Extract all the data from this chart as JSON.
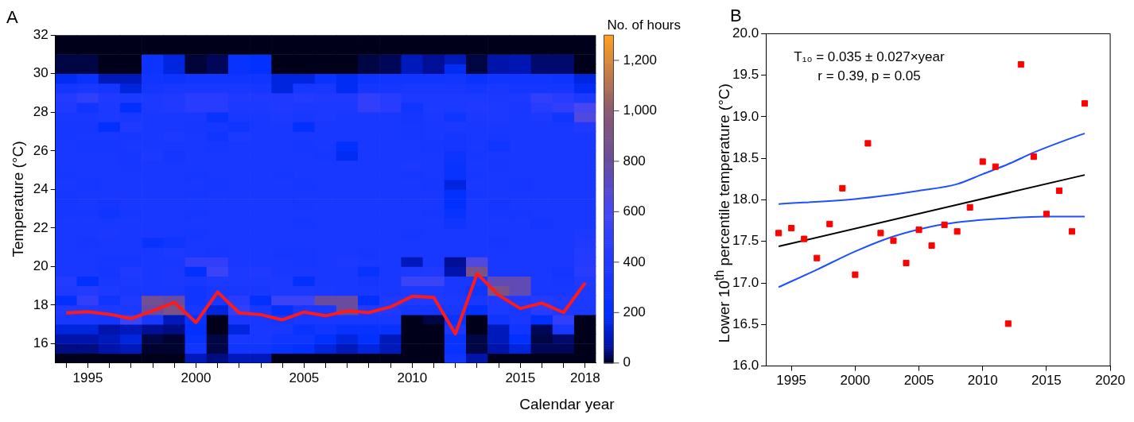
{
  "chart_data": [
    {
      "type": "heatmap",
      "title": "A",
      "ylabel": "Temperature (°C)",
      "xlabel": "Calendar year",
      "clabel": "No. of hours",
      "categories": [
        null,
        "1995",
        null,
        null,
        null,
        null,
        "2000",
        null,
        null,
        null,
        null,
        "2005",
        null,
        null,
        null,
        null,
        "2010",
        null,
        null,
        null,
        null,
        "2015",
        null,
        null,
        "2018"
      ],
      "ylim": [
        15,
        32
      ],
      "yticks": [
        16,
        18,
        20,
        22,
        24,
        26,
        28,
        30,
        32
      ],
      "clim": [
        0,
        1300
      ],
      "cticks": [
        0,
        200,
        400,
        600,
        800,
        {
          "value": 1000,
          "label": "1,000"
        },
        {
          "value": 1200,
          "label": "1,200"
        }
      ],
      "cells": [
        [
          0,
          0,
          0,
          0,
          0,
          0,
          0,
          0,
          0,
          0,
          0,
          0,
          0,
          0,
          0,
          0,
          0,
          0,
          0,
          0,
          0,
          0,
          0,
          0,
          0
        ],
        [
          0,
          0,
          0,
          0,
          0,
          0,
          0,
          0,
          0,
          0,
          0,
          0,
          0,
          0,
          0,
          0,
          0,
          0,
          0,
          0,
          0,
          0,
          0,
          0,
          0
        ],
        [
          20,
          20,
          0,
          0,
          280,
          150,
          15,
          30,
          250,
          200,
          0,
          0,
          0,
          0,
          20,
          30,
          100,
          60,
          100,
          20,
          80,
          90,
          40,
          40,
          0
        ],
        [
          20,
          20,
          0,
          0,
          280,
          150,
          15,
          30,
          250,
          200,
          0,
          0,
          0,
          0,
          20,
          30,
          100,
          60,
          180,
          20,
          80,
          90,
          40,
          40,
          0
        ],
        [
          180,
          250,
          100,
          100,
          300,
          280,
          300,
          300,
          300,
          300,
          150,
          150,
          250,
          180,
          280,
          300,
          300,
          300,
          320,
          250,
          300,
          300,
          300,
          280,
          150
        ],
        [
          330,
          350,
          330,
          150,
          330,
          350,
          350,
          350,
          350,
          340,
          150,
          340,
          350,
          180,
          330,
          330,
          350,
          350,
          350,
          330,
          350,
          330,
          330,
          330,
          180
        ],
        [
          420,
          500,
          400,
          380,
          380,
          400,
          450,
          450,
          400,
          400,
          400,
          420,
          400,
          400,
          500,
          450,
          380,
          380,
          380,
          380,
          370,
          380,
          500,
          450,
          380
        ],
        [
          400,
          300,
          380,
          200,
          380,
          400,
          450,
          450,
          380,
          380,
          400,
          380,
          380,
          380,
          500,
          450,
          300,
          380,
          380,
          400,
          380,
          350,
          450,
          500,
          600
        ],
        [
          350,
          350,
          380,
          350,
          360,
          360,
          350,
          250,
          350,
          350,
          380,
          350,
          380,
          350,
          360,
          360,
          330,
          370,
          300,
          370,
          380,
          360,
          380,
          300,
          650
        ],
        [
          340,
          340,
          200,
          400,
          350,
          360,
          340,
          340,
          300,
          350,
          360,
          200,
          350,
          350,
          350,
          350,
          340,
          350,
          370,
          350,
          360,
          350,
          350,
          350,
          400
        ],
        [
          340,
          350,
          350,
          340,
          350,
          380,
          350,
          300,
          380,
          350,
          350,
          350,
          360,
          350,
          350,
          350,
          340,
          350,
          330,
          360,
          340,
          350,
          350,
          350,
          360
        ],
        [
          350,
          340,
          340,
          350,
          360,
          350,
          360,
          340,
          350,
          350,
          360,
          340,
          350,
          200,
          350,
          360,
          350,
          340,
          330,
          350,
          300,
          350,
          360,
          350,
          350
        ],
        [
          350,
          360,
          350,
          340,
          380,
          330,
          350,
          350,
          350,
          360,
          350,
          350,
          340,
          180,
          350,
          350,
          350,
          350,
          280,
          340,
          350,
          350,
          350,
          350,
          360
        ],
        [
          360,
          350,
          350,
          340,
          350,
          350,
          350,
          350,
          360,
          350,
          350,
          360,
          350,
          350,
          360,
          350,
          370,
          350,
          250,
          350,
          340,
          350,
          360,
          350,
          350
        ],
        [
          340,
          350,
          360,
          360,
          350,
          360,
          340,
          350,
          350,
          360,
          340,
          350,
          350,
          360,
          350,
          350,
          340,
          360,
          250,
          340,
          350,
          350,
          350,
          350,
          350
        ],
        [
          350,
          340,
          350,
          350,
          360,
          350,
          350,
          340,
          350,
          350,
          350,
          340,
          350,
          350,
          350,
          350,
          350,
          340,
          150,
          350,
          350,
          340,
          350,
          350,
          360
        ],
        [
          340,
          350,
          360,
          350,
          360,
          350,
          340,
          350,
          360,
          360,
          350,
          350,
          360,
          350,
          360,
          350,
          350,
          350,
          200,
          340,
          350,
          360,
          350,
          360,
          350
        ],
        [
          340,
          350,
          330,
          360,
          350,
          350,
          350,
          350,
          350,
          350,
          350,
          340,
          350,
          360,
          350,
          350,
          350,
          350,
          200,
          350,
          330,
          350,
          350,
          360,
          350
        ],
        [
          340,
          340,
          300,
          340,
          350,
          350,
          340,
          350,
          350,
          350,
          350,
          350,
          350,
          350,
          350,
          350,
          350,
          340,
          250,
          350,
          340,
          340,
          350,
          360,
          350
        ],
        [
          350,
          350,
          350,
          350,
          350,
          360,
          350,
          350,
          350,
          350,
          350,
          340,
          350,
          350,
          350,
          350,
          350,
          350,
          300,
          350,
          350,
          350,
          330,
          350,
          350
        ],
        [
          350,
          350,
          370,
          350,
          350,
          350,
          340,
          350,
          350,
          350,
          350,
          360,
          360,
          350,
          350,
          350,
          340,
          350,
          350,
          350,
          350,
          350,
          350,
          350,
          380
        ],
        [
          350,
          340,
          350,
          350,
          250,
          300,
          350,
          350,
          350,
          350,
          350,
          350,
          350,
          350,
          350,
          350,
          350,
          350,
          350,
          350,
          340,
          350,
          350,
          350,
          400
        ],
        [
          350,
          350,
          350,
          350,
          350,
          380,
          350,
          340,
          350,
          350,
          340,
          340,
          350,
          350,
          340,
          350,
          350,
          360,
          350,
          350,
          350,
          350,
          350,
          350,
          420
        ],
        [
          350,
          350,
          340,
          340,
          350,
          350,
          500,
          500,
          350,
          360,
          350,
          340,
          350,
          380,
          350,
          350,
          100,
          350,
          60,
          650,
          350,
          350,
          350,
          350,
          420
        ],
        [
          350,
          360,
          330,
          400,
          350,
          370,
          200,
          550,
          380,
          400,
          350,
          350,
          360,
          350,
          250,
          350,
          380,
          400,
          80,
          900,
          350,
          350,
          350,
          330,
          450
        ],
        [
          420,
          200,
          350,
          380,
          350,
          370,
          350,
          380,
          380,
          380,
          380,
          200,
          360,
          350,
          330,
          350,
          550,
          550,
          350,
          350,
          750,
          750,
          360,
          340,
          400
        ],
        [
          400,
          420,
          380,
          350,
          350,
          360,
          300,
          360,
          350,
          360,
          380,
          380,
          370,
          360,
          350,
          360,
          380,
          380,
          350,
          300,
          900,
          750,
          360,
          350,
          380
        ],
        [
          200,
          500,
          300,
          400,
          850,
          800,
          300,
          350,
          450,
          200,
          550,
          550,
          800,
          800,
          200,
          400,
          400,
          400,
          380,
          350,
          400,
          400,
          420,
          400,
          380
        ],
        [
          400,
          400,
          380,
          380,
          800,
          900,
          350,
          150,
          500,
          350,
          200,
          350,
          350,
          800,
          400,
          400,
          330,
          330,
          350,
          200,
          380,
          350,
          450,
          380,
          380
        ],
        [
          350,
          350,
          330,
          550,
          350,
          100,
          250,
          0,
          350,
          350,
          330,
          350,
          350,
          350,
          350,
          350,
          0,
          20,
          250,
          0,
          300,
          350,
          200,
          500,
          0
        ],
        [
          150,
          150,
          80,
          100,
          60,
          50,
          200,
          0,
          150,
          350,
          350,
          250,
          300,
          250,
          250,
          250,
          0,
          0,
          350,
          0,
          100,
          300,
          30,
          350,
          0
        ],
        [
          80,
          80,
          100,
          150,
          20,
          10,
          250,
          20,
          350,
          350,
          300,
          300,
          200,
          150,
          200,
          100,
          0,
          0,
          250,
          20,
          100,
          200,
          20,
          40,
          0
        ],
        [
          50,
          50,
          80,
          100,
          10,
          10,
          300,
          20,
          300,
          300,
          250,
          200,
          150,
          100,
          150,
          100,
          0,
          0,
          250,
          20,
          80,
          150,
          30,
          30,
          0
        ],
        [
          0,
          0,
          0,
          0,
          0,
          0,
          100,
          50,
          100,
          100,
          0,
          0,
          0,
          0,
          0,
          0,
          0,
          0,
          300,
          80,
          0,
          0,
          0,
          0,
          0
        ]
      ],
      "series": [
        {
          "type": "line",
          "color": "#ff1a1a",
          "values": [
            17.6,
            17.66,
            17.53,
            17.3,
            17.71,
            18.14,
            17.1,
            18.68,
            17.6,
            17.51,
            17.24,
            17.64,
            17.45,
            17.7,
            17.62,
            17.91,
            18.46,
            18.4,
            16.51,
            19.63,
            18.52,
            17.83,
            18.11,
            17.62,
            19.16
          ]
        }
      ]
    },
    {
      "type": "scatter",
      "title": "B",
      "ylabel": "Lower 10$^{th}$ percentile temperature (°C)",
      "xlim": [
        1993,
        2020
      ],
      "xticks": [
        1995,
        2000,
        2005,
        2010,
        2015,
        2020
      ],
      "ylim": [
        16,
        20
      ],
      "yticks": [
        {
          "value": 16,
          "label": "16.0"
        },
        {
          "value": 16.5,
          "label": "16.5"
        },
        {
          "value": 17,
          "label": "17.0"
        },
        {
          "value": 17.5,
          "label": "17.5"
        },
        {
          "value": 18,
          "label": "18.0"
        },
        {
          "value": 18.5,
          "label": "18.5"
        },
        {
          "value": 19,
          "label": "19.0"
        },
        {
          "value": 19.5,
          "label": "19.5"
        },
        {
          "value": 20,
          "label": "20.0"
        }
      ],
      "annotations": [
        "T₁₀ = 0.035 ± 0.027×year",
        "r = 0.39, p = 0.05"
      ],
      "series": [
        {
          "type": "line",
          "color": "#000000",
          "x": [
            1994,
            2018
          ],
          "values": [
            17.44,
            18.3
          ]
        },
        {
          "type": "line",
          "color": "#1f4fff",
          "x": [
            1994,
            2000,
            2005,
            2008,
            2010,
            2012,
            2014,
            2016,
            2018
          ],
          "values": [
            17.95,
            18.01,
            18.11,
            18.19,
            18.31,
            18.43,
            18.57,
            18.69,
            18.8
          ]
        },
        {
          "type": "line",
          "color": "#1f4fff",
          "x": [
            1994,
            1997,
            2000,
            2003,
            2006,
            2008,
            2011,
            2015,
            2018
          ],
          "values": [
            16.95,
            17.16,
            17.38,
            17.56,
            17.68,
            17.73,
            17.77,
            17.8,
            17.8
          ]
        },
        {
          "type": "scatter",
          "marker": "square",
          "color": "#ff0000",
          "x": [
            1994,
            1995,
            1996,
            1997,
            1998,
            1999,
            2000,
            2001,
            2002,
            2003,
            2004,
            2005,
            2006,
            2007,
            2008,
            2009,
            2010,
            2011,
            2012,
            2013,
            2014,
            2015,
            2016,
            2017,
            2018
          ],
          "values": [
            17.6,
            17.66,
            17.53,
            17.3,
            17.71,
            18.14,
            17.1,
            18.68,
            17.6,
            17.51,
            17.24,
            17.64,
            17.45,
            17.7,
            17.62,
            17.91,
            18.46,
            18.4,
            16.51,
            19.63,
            18.52,
            17.83,
            18.11,
            17.62,
            19.16
          ]
        }
      ]
    }
  ]
}
